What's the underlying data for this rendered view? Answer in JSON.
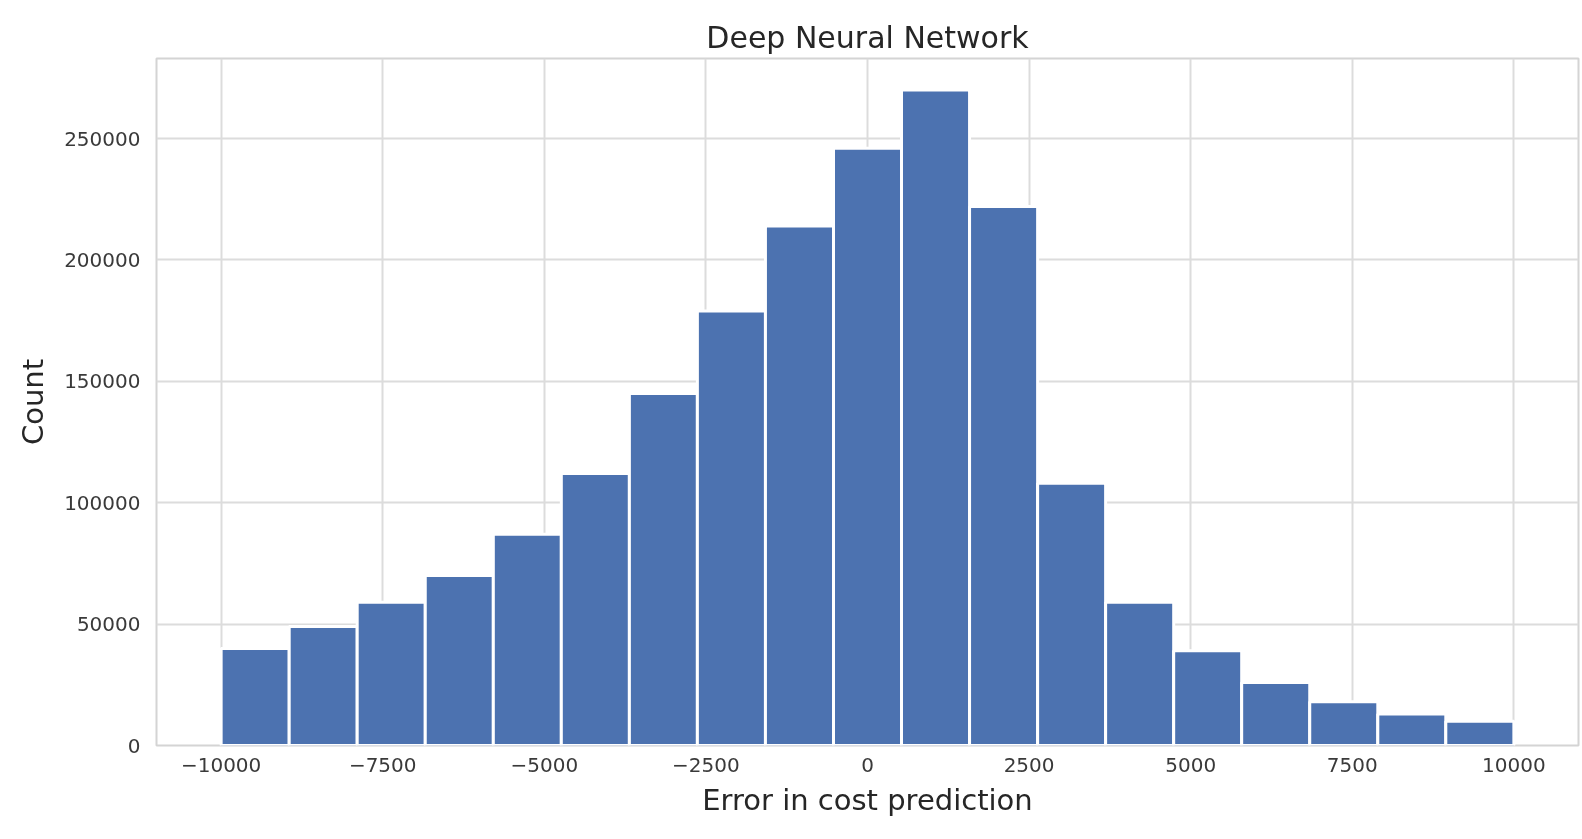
{
  "chart_data": {
    "type": "histogram",
    "title": "Deep Neural Network",
    "xlabel": "Error in cost prediction",
    "ylabel": "Count",
    "bins": [
      -10000,
      -8947,
      -7895,
      -6842,
      -5789,
      -4737,
      -3684,
      -2632,
      -1579,
      -526,
      526,
      1579,
      2632,
      3684,
      4737,
      5789,
      6842,
      7895,
      8947,
      10000
    ],
    "values": [
      40000,
      49000,
      59000,
      70000,
      87000,
      112000,
      145000,
      179000,
      214000,
      246000,
      270000,
      222000,
      108000,
      59000,
      39000,
      26000,
      18000,
      13000,
      10000
    ],
    "color": "#4c72b0",
    "xlim": [
      -11000,
      11000
    ],
    "ylim": [
      0,
      283000
    ],
    "xticks": [
      {
        "value": -10000,
        "label": "−10000"
      },
      {
        "value": -7500,
        "label": "−7500"
      },
      {
        "value": -5000,
        "label": "−5000"
      },
      {
        "value": -2500,
        "label": "−2500"
      },
      0,
      2500,
      5000,
      7500,
      10000
    ],
    "yticks": [
      0,
      50000,
      100000,
      150000,
      200000,
      250000
    ],
    "grid": true
  }
}
